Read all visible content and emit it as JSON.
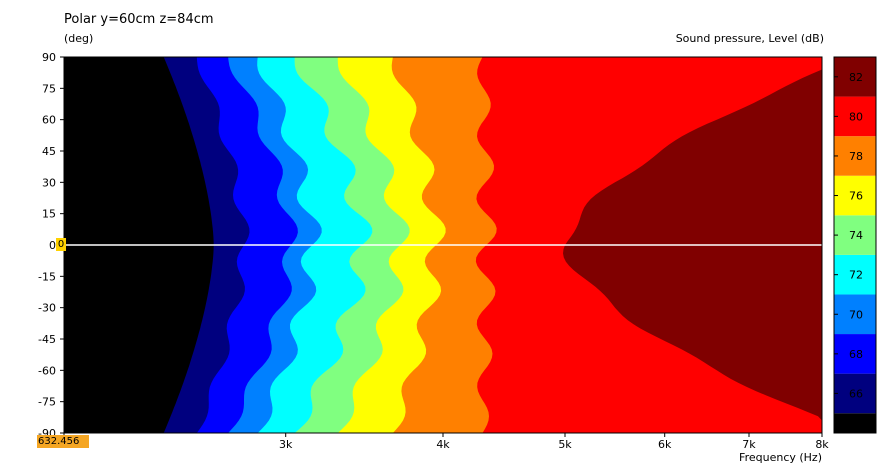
{
  "title": "Polar y=60cm z=84cm",
  "y_unit": "(deg)",
  "colorbar_label": "Sound pressure, Level  (dB)",
  "x_label": "Frequency  (Hz)",
  "cursor": {
    "readout": "632.456",
    "zero_marker": "0"
  },
  "chart_data": {
    "type": "heatmap",
    "title": "Polar y=60cm z=84cm",
    "xlabel": "Frequency  (Hz)",
    "ylabel": "(deg)",
    "zlabel": "Sound pressure, Level  (dB)",
    "x_scale": "log",
    "xlim": [
      2000,
      8000
    ],
    "ylim": [
      -90,
      90
    ],
    "x_ticks": [
      {
        "value": 2000,
        "label": "2k"
      },
      {
        "value": 3000,
        "label": "3k"
      },
      {
        "value": 4000,
        "label": "4k"
      },
      {
        "value": 5000,
        "label": "5k"
      },
      {
        "value": 6000,
        "label": "6k"
      },
      {
        "value": 7000,
        "label": "7k"
      },
      {
        "value": 8000,
        "label": "8k"
      }
    ],
    "y_ticks": [
      90,
      75,
      60,
      45,
      30,
      15,
      0,
      -15,
      -30,
      -45,
      -60,
      -75,
      -90
    ],
    "colorbar_ticks": [
      66,
      68,
      70,
      72,
      74,
      76,
      78,
      80,
      82
    ],
    "levels": [
      {
        "min": 64,
        "max": 65,
        "color": "#000000"
      },
      {
        "min": 65,
        "max": 67,
        "color": "#00007f"
      },
      {
        "min": 67,
        "max": 69,
        "color": "#0000ff"
      },
      {
        "min": 69,
        "max": 71,
        "color": "#0080ff"
      },
      {
        "min": 71,
        "max": 73,
        "color": "#00ffff"
      },
      {
        "min": 73,
        "max": 75,
        "color": "#80ff80"
      },
      {
        "min": 75,
        "max": 77,
        "color": "#ffff00"
      },
      {
        "min": 77,
        "max": 79,
        "color": "#ff8000"
      },
      {
        "min": 79,
        "max": 81,
        "color": "#ff0000"
      },
      {
        "min": 81,
        "max": 83,
        "color": "#800000"
      }
    ],
    "contours": [
      {
        "level": 65,
        "onaxis_freq": 2630,
        "edge_freq": 2400,
        "ripple": 0
      },
      {
        "level": 67,
        "onaxis_freq": 2780,
        "edge_freq": 2550,
        "ripple": 0.012
      },
      {
        "level": 69,
        "onaxis_freq": 3030,
        "edge_freq": 2700,
        "ripple": 0.015
      },
      {
        "level": 71,
        "onaxis_freq": 3150,
        "edge_freq": 2850,
        "ripple": 0.02
      },
      {
        "level": 73,
        "onaxis_freq": 3450,
        "edge_freq": 3050,
        "ripple": 0.022
      },
      {
        "level": 75,
        "onaxis_freq": 3700,
        "edge_freq": 3300,
        "ripple": 0.02
      },
      {
        "level": 77,
        "onaxis_freq": 3950,
        "edge_freq": 3650,
        "ripple": 0.02
      },
      {
        "level": 79,
        "onaxis_freq": 4330,
        "edge_freq": 4300,
        "ripple": 0.02
      },
      {
        "level": 81,
        "onaxis_freq": 5000,
        "edge_freq": 8500,
        "ripple": 0.01
      }
    ],
    "cursor_y_deg": 0
  },
  "colors": {
    "background": "#ffffff",
    "plot_frame": "#000000",
    "cursor_line": "#ffffff",
    "badge": "#f5a623",
    "zero_badge": "#ffd200"
  }
}
